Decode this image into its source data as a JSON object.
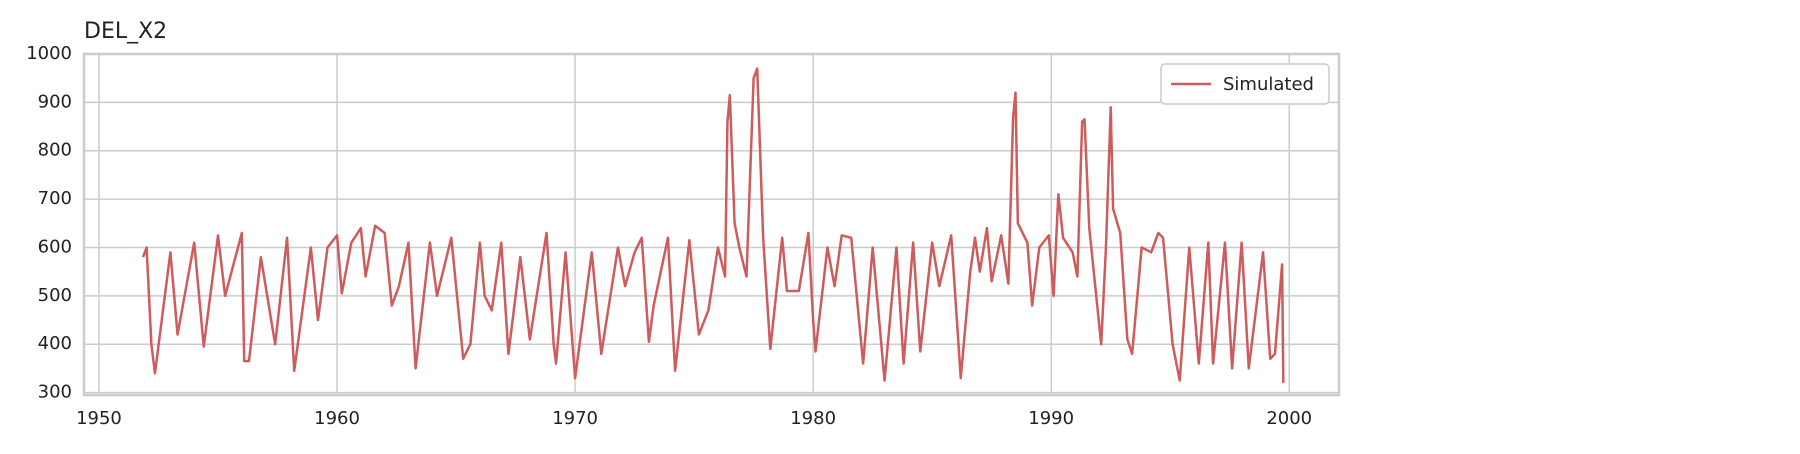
{
  "chart_data": {
    "type": "line",
    "title": "DEL_X2",
    "x": [
      1951.85,
      1952.0,
      1952.2,
      1952.35,
      1953.0,
      1953.3,
      1954.0,
      1954.4,
      1955.0,
      1955.3,
      1956.0,
      1956.1,
      1956.3,
      1956.8,
      1957.4,
      1957.9,
      1958.2,
      1958.9,
      1959.2,
      1959.6,
      1960.0,
      1960.2,
      1960.6,
      1961.0,
      1961.2,
      1961.6,
      1962.0,
      1962.3,
      1962.6,
      1963.0,
      1963.3,
      1963.9,
      1964.2,
      1964.8,
      1965.3,
      1965.6,
      1966.0,
      1966.2,
      1966.5,
      1966.9,
      1967.2,
      1967.7,
      1968.1,
      1968.8,
      1969.1,
      1969.2,
      1969.6,
      1970.0,
      1970.7,
      1971.1,
      1971.8,
      1972.1,
      1972.5,
      1972.8,
      1973.1,
      1973.3,
      1973.9,
      1974.2,
      1974.8,
      1975.2,
      1975.6,
      1976.0,
      1976.3,
      1976.4,
      1976.5,
      1976.7,
      1976.9,
      1977.2,
      1977.5,
      1977.65,
      1977.9,
      1978.2,
      1978.7,
      1978.9,
      1979.4,
      1979.8,
      1980.0,
      1980.1,
      1980.6,
      1980.9,
      1981.2,
      1981.6,
      1982.1,
      1982.5,
      1983.0,
      1983.5,
      1983.8,
      1984.2,
      1984.5,
      1985.0,
      1985.3,
      1985.8,
      1986.2,
      1986.6,
      1986.8,
      1987.0,
      1987.3,
      1987.5,
      1987.9,
      1988.2,
      1988.4,
      1988.5,
      1988.6,
      1989.0,
      1989.2,
      1989.5,
      1989.9,
      1990.1,
      1990.3,
      1990.5,
      1990.9,
      1991.1,
      1991.3,
      1991.4,
      1991.6,
      1992.1,
      1992.3,
      1992.5,
      1992.6,
      1992.9,
      1993.2,
      1993.4,
      1993.8,
      1994.2,
      1994.5,
      1994.7,
      1995.1,
      1995.4,
      1995.8,
      1996.2,
      1996.6,
      1996.8,
      1997.3,
      1997.6,
      1998.0,
      1998.3,
      1998.9,
      1999.2,
      1999.4,
      1999.7,
      1999.75
    ],
    "series": [
      {
        "name": "Simulated",
        "color": "#cd5c5c",
        "values": [
          580,
          600,
          400,
          340,
          590,
          420,
          610,
          395,
          625,
          500,
          630,
          365,
          365,
          580,
          400,
          620,
          345,
          600,
          450,
          600,
          625,
          505,
          610,
          640,
          540,
          645,
          630,
          480,
          520,
          610,
          350,
          610,
          500,
          620,
          370,
          400,
          610,
          500,
          470,
          610,
          380,
          580,
          410,
          630,
          400,
          360,
          590,
          330,
          590,
          380,
          600,
          520,
          590,
          620,
          405,
          480,
          620,
          345,
          615,
          420,
          470,
          600,
          540,
          860,
          915,
          650,
          600,
          540,
          950,
          970,
          620,
          390,
          620,
          510,
          510,
          630,
          450,
          385,
          600,
          520,
          625,
          620,
          360,
          600,
          325,
          600,
          360,
          610,
          385,
          610,
          520,
          625,
          330,
          550,
          620,
          550,
          640,
          530,
          625,
          525,
          870,
          920,
          650,
          610,
          480,
          600,
          625,
          500,
          710,
          620,
          590,
          540,
          860,
          865,
          640,
          400,
          600,
          890,
          680,
          630,
          410,
          380,
          600,
          590,
          630,
          620,
          400,
          325,
          600,
          360,
          610,
          360,
          610,
          350,
          610,
          350,
          590,
          370,
          380,
          565,
          320
        ]
      }
    ],
    "xlim": [
      1949.37,
      2002.09
    ],
    "ylim": [
      295,
      1000
    ],
    "xticks": [
      1950,
      1960,
      1970,
      1980,
      1990,
      2000
    ],
    "yticks": [
      300,
      400,
      500,
      600,
      700,
      800,
      900,
      1000
    ],
    "grid": true,
    "legend": "upper right"
  }
}
